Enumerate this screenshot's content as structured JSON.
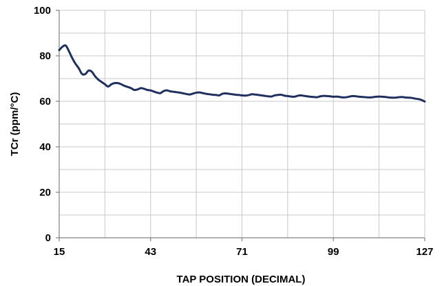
{
  "chart_data": {
    "type": "line",
    "title": "",
    "xlabel": "TAP POSITION (DECIMAL)",
    "ylabel": "TCr (ppm/°C)",
    "xlim": [
      15,
      127
    ],
    "ylim": [
      0,
      100
    ],
    "x_ticks": [
      15,
      43,
      71,
      99,
      127
    ],
    "x_tick_labels": [
      "15",
      "43",
      "71",
      "99",
      "127"
    ],
    "y_ticks": [
      0,
      20,
      40,
      60,
      80,
      100
    ],
    "y_tick_labels": [
      "0",
      "20",
      "40",
      "60",
      "80",
      "100"
    ],
    "x_minor_gridlines": [
      29,
      57,
      85,
      113
    ],
    "y_minor_gridlines": [
      10,
      30,
      50,
      70,
      90
    ],
    "grid": true,
    "legend": "none",
    "colors": {
      "line": "#1f2f5e",
      "grid": "#c8c8c8",
      "axis": "#808080"
    },
    "series": [
      {
        "x": [
          15,
          16,
          17,
          18,
          19,
          20,
          21,
          22,
          23,
          24,
          25,
          26,
          27,
          28,
          29,
          30,
          31,
          32,
          33,
          34,
          35,
          36,
          37,
          38,
          39,
          40,
          41,
          42,
          43,
          44,
          45,
          46,
          47,
          48,
          49,
          50,
          51,
          52,
          53,
          54,
          55,
          56,
          57,
          58,
          59,
          60,
          61,
          62,
          63,
          64,
          65,
          66,
          67,
          68,
          69,
          70,
          71,
          72,
          73,
          74,
          75,
          76,
          77,
          78,
          79,
          80,
          81,
          82,
          83,
          84,
          85,
          86,
          87,
          88,
          89,
          90,
          91,
          92,
          93,
          94,
          95,
          96,
          97,
          98,
          99,
          100,
          101,
          102,
          103,
          104,
          105,
          106,
          107,
          108,
          109,
          110,
          111,
          112,
          113,
          114,
          115,
          116,
          117,
          118,
          119,
          120,
          121,
          122,
          123,
          124,
          125,
          126,
          127
        ],
        "y": [
          82.5,
          84,
          84.5,
          82,
          79,
          76.5,
          74.5,
          72,
          72,
          73.5,
          73,
          71,
          69.5,
          68.5,
          67.5,
          66.5,
          67.5,
          68,
          68,
          67.5,
          66.8,
          66.3,
          65.8,
          65,
          65.2,
          65.8,
          65.5,
          65,
          64.8,
          64.3,
          63.8,
          63.6,
          64.5,
          64.8,
          64.4,
          64.2,
          64,
          63.8,
          63.5,
          63.2,
          63,
          63.4,
          63.8,
          63.9,
          63.6,
          63.3,
          63.1,
          62.9,
          62.8,
          62.6,
          63.3,
          63.5,
          63.3,
          63.1,
          62.9,
          62.8,
          62.6,
          62.5,
          62.7,
          63.1,
          63,
          62.8,
          62.6,
          62.4,
          62.2,
          62.1,
          62.6,
          62.8,
          62.9,
          62.5,
          62.3,
          62.1,
          62,
          62.4,
          62.6,
          62.4,
          62.2,
          62,
          61.9,
          61.8,
          62.2,
          62.4,
          62.3,
          62.2,
          62,
          62.1,
          61.9,
          61.7,
          61.8,
          62.1,
          62.3,
          62.2,
          62,
          61.9,
          61.8,
          61.7,
          61.8,
          62,
          62.1,
          62,
          61.9,
          61.7,
          61.6,
          61.6,
          61.8,
          61.9,
          61.7,
          61.6,
          61.5,
          61.2,
          61,
          60.6,
          59.9
        ]
      }
    ]
  }
}
